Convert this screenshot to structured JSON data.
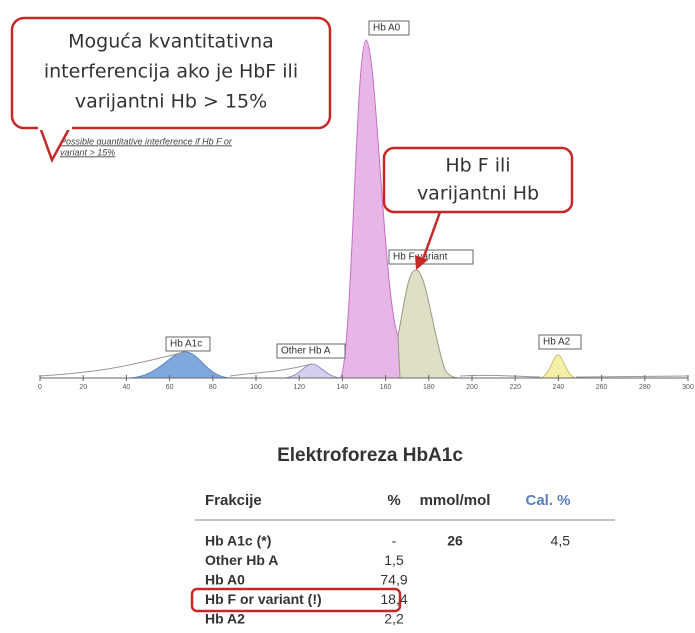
{
  "callouts": [
    {
      "lines": [
        "Moguća kvantitativna",
        "interferencija ako je HbF ili",
        "varijantni Hb > 15%"
      ]
    },
    {
      "lines": [
        "Hb F ili",
        "varijantni Hb"
      ]
    }
  ],
  "note": [
    "Possible quantitative interference if Hb F or",
    "variant > 15%"
  ],
  "peaks": [
    "Hb A0",
    "Hb F variant",
    "Hb A1c",
    "Other Hb A",
    "Hb A2"
  ],
  "axis": {
    "ticks": [
      0,
      20,
      40,
      60,
      80,
      100,
      120,
      140,
      160,
      180,
      200,
      220,
      240,
      260,
      280,
      300
    ]
  },
  "table": {
    "title": "Elektroforeza HbA1c",
    "header": [
      "Frakcije",
      "%",
      "mmol/mol",
      "Cal. %"
    ],
    "rows": [
      {
        "name": "Hb A1c (*)",
        "percent": "-",
        "mmol": "26",
        "cal": "4,5"
      },
      {
        "name": "Other Hb A",
        "percent": "1,5"
      },
      {
        "name": "Hb A0",
        "percent": "74,9"
      },
      {
        "name": "Hb F or variant (!)",
        "percent": "18,4"
      },
      {
        "name": "Hb A2",
        "percent": "2,2"
      }
    ]
  }
}
